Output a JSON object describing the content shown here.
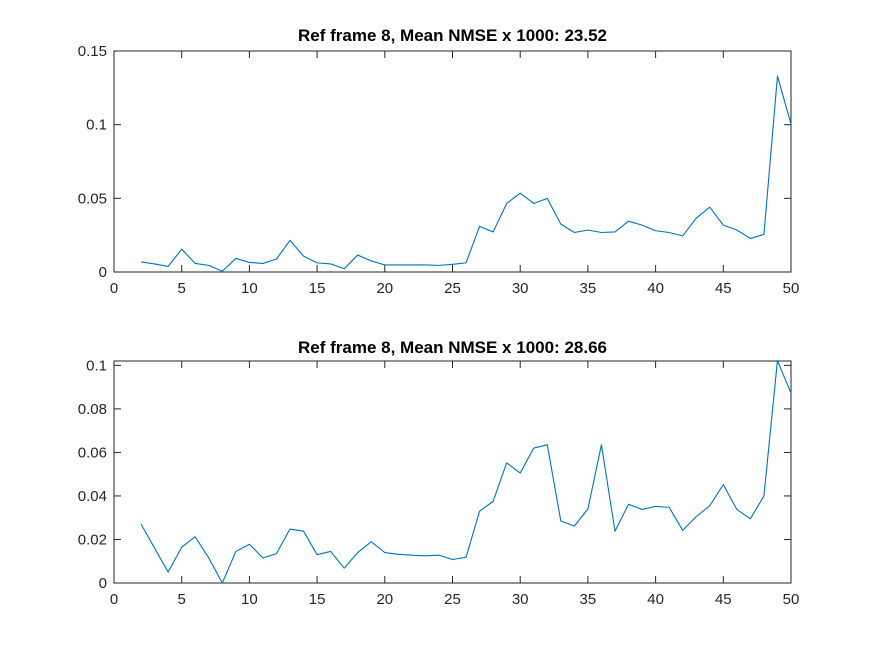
{
  "chart_data": [
    {
      "type": "line",
      "title": "Ref frame 8, Mean NMSE x 1000: 23.52",
      "xlabel": "",
      "ylabel": "",
      "xlim": [
        0,
        50
      ],
      "ylim": [
        0,
        0.15
      ],
      "xticks": [
        0,
        5,
        10,
        15,
        20,
        25,
        30,
        35,
        40,
        45,
        50
      ],
      "xtick_labels": [
        "0",
        "5",
        "10",
        "15",
        "20",
        "25",
        "30",
        "35",
        "40",
        "45",
        "50"
      ],
      "yticks": [
        0,
        0.05,
        0.1,
        0.15
      ],
      "ytick_labels": [
        "0",
        "0.05",
        "0.1",
        "0.15"
      ],
      "grid": false,
      "series": [
        {
          "color": "#0072bd",
          "x": [
            2,
            3,
            4,
            5,
            6,
            7,
            8,
            9,
            10,
            11,
            12,
            13,
            14,
            15,
            16,
            17,
            18,
            19,
            20,
            21,
            22,
            23,
            24,
            25,
            26,
            27,
            28,
            29,
            30,
            31,
            32,
            33,
            34,
            35,
            36,
            37,
            38,
            39,
            40,
            41,
            42,
            43,
            44,
            45,
            46,
            47,
            48,
            49,
            50
          ],
          "values": [
            0.0068,
            0.0055,
            0.0038,
            0.0155,
            0.0058,
            0.0045,
            0.0005,
            0.0092,
            0.0065,
            0.0058,
            0.0088,
            0.0215,
            0.0108,
            0.0062,
            0.0055,
            0.0022,
            0.0115,
            0.0075,
            0.0048,
            0.0048,
            0.0048,
            0.0048,
            0.0045,
            0.0052,
            0.0062,
            0.031,
            0.0272,
            0.0465,
            0.0535,
            0.0465,
            0.05,
            0.0325,
            0.0268,
            0.0285,
            0.0268,
            0.0272,
            0.0345,
            0.0318,
            0.028,
            0.0268,
            0.0245,
            0.0365,
            0.044,
            0.0318,
            0.0285,
            0.0228,
            0.0255,
            0.133,
            0.1005
          ]
        }
      ]
    },
    {
      "type": "line",
      "title": "Ref frame 8, Mean NMSE x 1000: 28.66",
      "xlabel": "",
      "ylabel": "",
      "xlim": [
        0,
        50
      ],
      "ylim": [
        0,
        0.102
      ],
      "xticks": [
        0,
        5,
        10,
        15,
        20,
        25,
        30,
        35,
        40,
        45,
        50
      ],
      "xtick_labels": [
        "0",
        "5",
        "10",
        "15",
        "20",
        "25",
        "30",
        "35",
        "40",
        "45",
        "50"
      ],
      "yticks": [
        0,
        0.02,
        0.04,
        0.06,
        0.08,
        0.1
      ],
      "ytick_labels": [
        "0",
        "0.02",
        "0.04",
        "0.06",
        "0.08",
        "0.1"
      ],
      "grid": false,
      "series": [
        {
          "color": "#0072bd",
          "x": [
            2,
            3,
            4,
            5,
            6,
            7,
            8,
            9,
            10,
            11,
            12,
            13,
            14,
            15,
            16,
            17,
            18,
            19,
            20,
            21,
            22,
            23,
            24,
            25,
            26,
            27,
            28,
            29,
            30,
            31,
            32,
            33,
            34,
            35,
            36,
            37,
            38,
            39,
            40,
            41,
            42,
            43,
            44,
            45,
            46,
            47,
            48,
            49,
            50
          ],
          "values": [
            0.027,
            0.016,
            0.005,
            0.0165,
            0.0212,
            0.0115,
            0.0,
            0.0145,
            0.0178,
            0.0115,
            0.0135,
            0.0248,
            0.0238,
            0.013,
            0.0145,
            0.0068,
            0.014,
            0.019,
            0.014,
            0.0132,
            0.0128,
            0.0125,
            0.0128,
            0.0108,
            0.0118,
            0.033,
            0.0375,
            0.0552,
            0.0505,
            0.062,
            0.0635,
            0.0285,
            0.0262,
            0.034,
            0.0635,
            0.0238,
            0.0362,
            0.0338,
            0.0352,
            0.0348,
            0.0242,
            0.0305,
            0.0355,
            0.0452,
            0.0338,
            0.0295,
            0.04,
            0.1022,
            0.0872
          ]
        }
      ]
    }
  ]
}
